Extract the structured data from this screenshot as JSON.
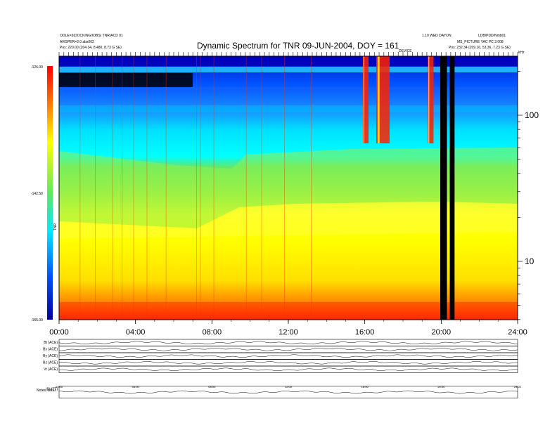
{
  "header": {
    "title": "Dynamic Spectrum for TNR 09-JUN-2004, DOY = 161",
    "left_line1": "ODLE=3(DOCKING/IOBS) TNR/ACD 01",
    "left_line2": "ARGPER=3.0 abs002",
    "left_line3": "Pos: 220.00 (204.34, 8.480, 8.73 G SE)",
    "right_line1": "1.10 WED DAYON",
    "right_line2": "MS_PICTURE YAC PC 3.008",
    "right_line3": "Pos: 232.34 (209.16, 53.36, 7.23 G SE)",
    "right_top": "LDB/PDD/Nmb01",
    "mid_label": "DEVICE",
    "right_unit": "kHz"
  },
  "colorbar": {
    "max_label": "-126.00",
    "mid_label": "-142.50",
    "min_label": "-155.00",
    "unit_label": "TNR"
  },
  "chart_data": [
    {
      "type": "heatmap",
      "title": "Dynamic Spectrum for TNR 09-JUN-2004, DOY = 161",
      "x_ticks": [
        "00:00",
        "04:00",
        "08:00",
        "12:00",
        "16:00",
        "20:00",
        "24:00"
      ],
      "x_range_hours": [
        0,
        24
      ],
      "y_scale": "log",
      "y_ticks": [
        10,
        100
      ],
      "y_unit": "kHz",
      "colorbar_range": [
        -155,
        -126
      ],
      "colorbar_ticks": [
        -126,
        -142.5,
        -155
      ],
      "colormap": [
        "#0000a0",
        "#0050ff",
        "#00e8ff",
        "#60e860",
        "#ffff00",
        "#ff6000",
        "#ff0000"
      ],
      "features": {
        "black_data_gaps_hours": [
          [
            19.95,
            20.3
          ],
          [
            20.45,
            20.7
          ]
        ],
        "type_iii_burst_hours": [
          [
            15.9,
            16.2
          ],
          [
            16.6,
            17.3
          ],
          [
            19.3,
            19.6
          ]
        ]
      }
    },
    {
      "type": "line",
      "title": "",
      "panels": [
        "Bt (ACE)",
        "Bx (ACE)",
        "By (ACE)",
        "Bz (ACE)",
        "Vr (ACE)",
        "|B| (TT)"
      ],
      "x_ticks": [
        "00:00",
        "04:00",
        "08:00",
        "12:00",
        "16:00",
        "20:00",
        "24:00"
      ],
      "x_range_hours": [
        0,
        24
      ]
    }
  ],
  "footer": {
    "left_label": "Notes: sMEt"
  },
  "colors": {
    "background": "#ffffff",
    "gap": "#000000"
  }
}
